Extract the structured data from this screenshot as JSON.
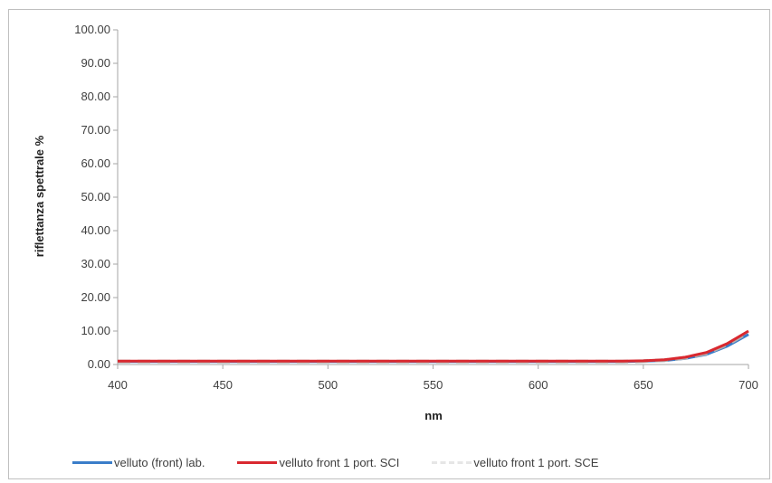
{
  "chart_data": {
    "type": "line",
    "title": "",
    "xlabel": "nm",
    "ylabel": "riflettanza spettrale %",
    "xlim": [
      400,
      700
    ],
    "ylim": [
      0,
      100
    ],
    "x_ticks": [
      "400",
      "450",
      "500",
      "550",
      "600",
      "650",
      "700"
    ],
    "y_ticks": [
      "0.00",
      "10.00",
      "20.00",
      "30.00",
      "40.00",
      "50.00",
      "60.00",
      "70.00",
      "80.00",
      "90.00",
      "100.00"
    ],
    "grid": false,
    "legend_position": "bottom",
    "series": [
      {
        "name": "velluto (front) lab.",
        "color": "#3a7dc9",
        "style": "solid",
        "x": [
          400,
          420,
          440,
          460,
          480,
          500,
          520,
          540,
          560,
          580,
          600,
          620,
          640,
          650,
          660,
          670,
          680,
          690,
          700
        ],
        "y": [
          0.9,
          0.9,
          0.9,
          0.9,
          0.9,
          0.9,
          0.9,
          0.9,
          0.9,
          0.9,
          0.9,
          0.9,
          0.9,
          1.0,
          1.2,
          1.8,
          3.0,
          5.5,
          9.0
        ]
      },
      {
        "name": "velluto front 1 port. SCI",
        "color": "#d9282f",
        "style": "solid",
        "x": [
          400,
          420,
          440,
          460,
          480,
          500,
          520,
          540,
          560,
          580,
          600,
          620,
          640,
          650,
          660,
          670,
          680,
          690,
          700
        ],
        "y": [
          1.0,
          1.0,
          1.0,
          1.0,
          1.0,
          1.0,
          1.0,
          1.0,
          1.0,
          1.0,
          1.0,
          1.0,
          1.0,
          1.1,
          1.4,
          2.2,
          3.6,
          6.3,
          10.0
        ]
      },
      {
        "name": "velluto front 1 port. SCE",
        "color": "#b0b0b0",
        "style": "dashed",
        "x": [
          400,
          420,
          440,
          460,
          480,
          500,
          520,
          540,
          560,
          580,
          600,
          620,
          640,
          650,
          660,
          670,
          680,
          690,
          700
        ],
        "y": [
          0.9,
          0.9,
          0.9,
          0.9,
          0.9,
          0.9,
          0.9,
          0.9,
          0.9,
          0.9,
          0.9,
          0.9,
          0.9,
          1.0,
          1.3,
          2.0,
          3.3,
          6.0,
          9.6
        ]
      }
    ]
  }
}
